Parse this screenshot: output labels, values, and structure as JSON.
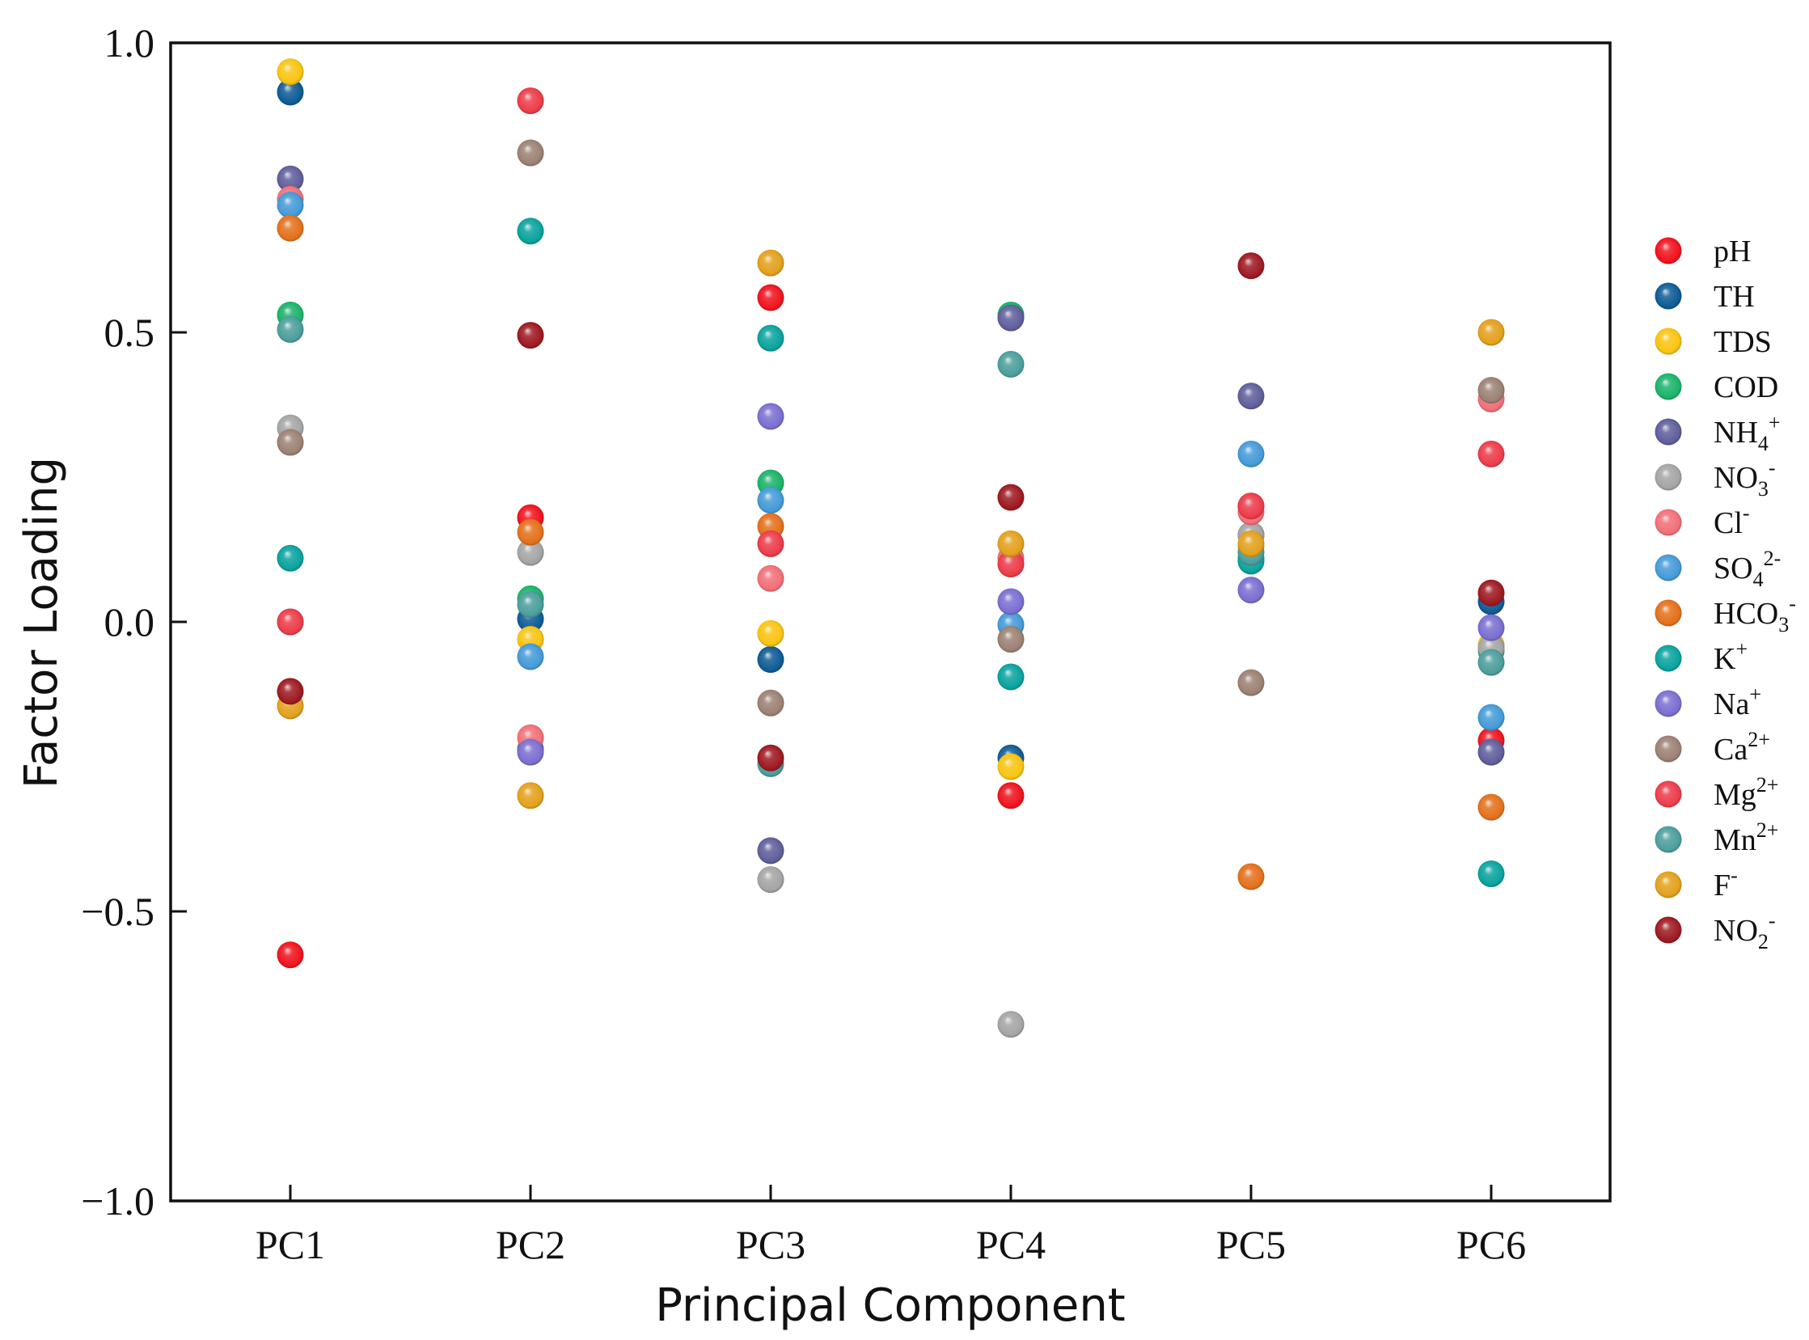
{
  "chart_data": {
    "type": "scatter",
    "title": "",
    "xlabel": "Principal Component",
    "ylabel": "Factor Loading",
    "ylim": [
      -1.0,
      1.0
    ],
    "yticks": [
      {
        "value": 1.0,
        "label": "1.0"
      },
      {
        "value": 0.5,
        "label": "0.5"
      },
      {
        "value": 0.0,
        "label": "0.0"
      },
      {
        "value": -0.5,
        "label": "−0.5"
      },
      {
        "value": -1.0,
        "label": "−1.0"
      }
    ],
    "categories": [
      "PC1",
      "PC2",
      "PC3",
      "PC4",
      "PC5",
      "PC6"
    ],
    "legend_position": "right",
    "series": [
      {
        "name": "pH",
        "base": "pH",
        "sub": "",
        "sup": "",
        "color": "#f0141e",
        "values": [
          -0.575,
          0.18,
          0.56,
          -0.3,
          0.2,
          -0.205
        ]
      },
      {
        "name": "TH",
        "base": "TH",
        "sub": "",
        "sup": "",
        "color": "#0f5c96",
        "values": [
          0.915,
          0.005,
          -0.065,
          -0.235,
          0.15,
          0.035
        ]
      },
      {
        "name": "TDS",
        "base": "TDS",
        "sub": "",
        "sup": "",
        "color": "#f9c412",
        "values": [
          0.95,
          -0.03,
          -0.02,
          -0.25,
          0.13,
          -0.04
        ]
      },
      {
        "name": "COD",
        "base": "COD",
        "sub": "",
        "sup": "",
        "color": "#1cb36a",
        "values": [
          0.53,
          0.04,
          0.24,
          0.53,
          0.11,
          -0.05
        ]
      },
      {
        "name": "NH4+",
        "base": "NH",
        "sub": "4",
        "sup": "+",
        "color": "#605f9c",
        "values": [
          0.765,
          -0.22,
          -0.395,
          0.525,
          0.39,
          -0.225
        ]
      },
      {
        "name": "NO3-",
        "base": "NO",
        "sub": "3",
        "sup": "-",
        "color": "#a5a5a5",
        "values": [
          0.335,
          0.12,
          -0.445,
          -0.695,
          0.15,
          -0.045
        ]
      },
      {
        "name": "Cl-",
        "base": "Cl",
        "sub": "",
        "sup": "-",
        "color": "#f27078",
        "values": [
          0.73,
          -0.2,
          0.075,
          0.11,
          0.19,
          0.385
        ]
      },
      {
        "name": "SO42-",
        "base": "SO",
        "sub": "4",
        "sup": "2-",
        "color": "#459bd8",
        "values": [
          0.72,
          -0.06,
          0.21,
          -0.005,
          0.29,
          -0.165
        ]
      },
      {
        "name": "HCO3-",
        "base": "HCO",
        "sub": "3",
        "sup": "-",
        "color": "#e4711c",
        "values": [
          0.68,
          0.155,
          0.165,
          0.1,
          -0.44,
          -0.32
        ]
      },
      {
        "name": "K+",
        "base": "K",
        "sub": "",
        "sup": "+",
        "color": "#0aa39e",
        "values": [
          0.11,
          0.675,
          0.49,
          -0.095,
          0.105,
          -0.435
        ]
      },
      {
        "name": "Na+",
        "base": "Na",
        "sub": "",
        "sup": "+",
        "color": "#7b6fd1",
        "values": [
          0.0,
          -0.225,
          0.355,
          0.035,
          0.055,
          -0.01
        ]
      },
      {
        "name": "Ca2+",
        "base": "Ca",
        "sub": "",
        "sup": "2+",
        "color": "#9c8274",
        "values": [
          0.31,
          0.81,
          -0.14,
          -0.03,
          -0.105,
          0.4
        ]
      },
      {
        "name": "Mg2+",
        "base": "Mg",
        "sub": "",
        "sup": "2+",
        "color": "#ec3d4a",
        "values": [
          0.0,
          0.9,
          0.135,
          0.1,
          0.2,
          0.29
        ]
      },
      {
        "name": "Mn2+",
        "base": "Mn",
        "sub": "",
        "sup": "2+",
        "color": "#4c9f9c",
        "values": [
          0.505,
          0.03,
          -0.245,
          0.445,
          0.12,
          -0.07
        ]
      },
      {
        "name": "F-",
        "base": "F",
        "sub": "",
        "sup": "-",
        "color": "#e3a11d",
        "values": [
          -0.145,
          -0.3,
          0.62,
          0.135,
          0.135,
          0.5
        ]
      },
      {
        "name": "NO2-",
        "base": "NO",
        "sub": "2",
        "sup": "-",
        "color": "#9e1a22",
        "values": [
          -0.12,
          0.495,
          -0.235,
          0.215,
          0.615,
          0.05
        ]
      }
    ]
  }
}
